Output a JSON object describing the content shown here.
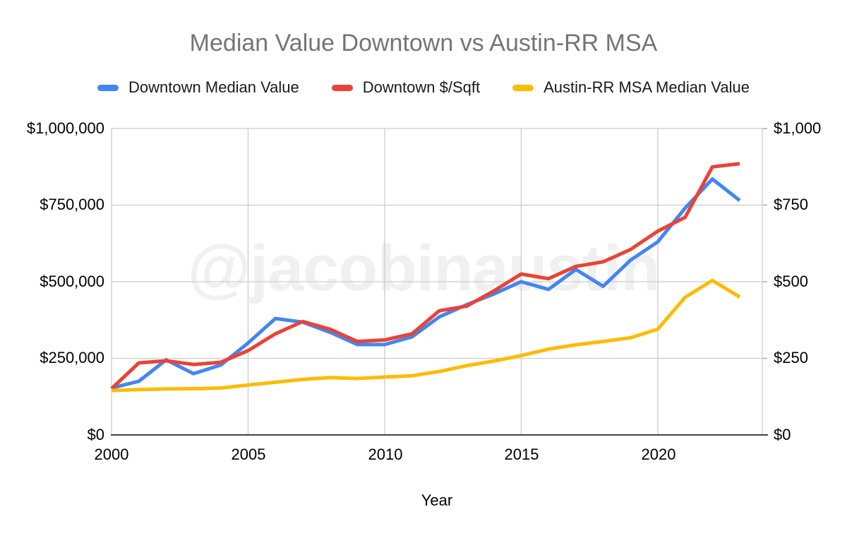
{
  "title": "Median Value Downtown vs Austin-RR MSA",
  "watermark": "@jacobinaustin",
  "legend": [
    {
      "label": "Downtown Median Value",
      "color": "#4285F4"
    },
    {
      "label": "Downtown $/Sqft",
      "color": "#EA4335"
    },
    {
      "label": "Austin-RR MSA Median Value",
      "color": "#FBBC04"
    }
  ],
  "axes": {
    "left_ticks": [
      "$1,000,000",
      "$750,000",
      "$500,000",
      "$250,000",
      "$0"
    ],
    "right_ticks": [
      "$1,000",
      "$750",
      "$500",
      "$250",
      "$0"
    ],
    "x_ticks": [
      "2000",
      "2005",
      "2010",
      "2015",
      "2020"
    ],
    "x_label": "Year"
  },
  "colors": {
    "grid": "#cccccc",
    "axis_line": "#424242",
    "tick_mark": "#9e9e9e",
    "title_text": "#757575",
    "watermark_text": "#f0f0f0"
  },
  "chart_data": {
    "type": "line",
    "title": "Median Value Downtown vs Austin-RR MSA",
    "xlabel": "Year",
    "grid": true,
    "legend_position": "top",
    "x": [
      2000,
      2001,
      2002,
      2003,
      2004,
      2005,
      2006,
      2007,
      2008,
      2009,
      2010,
      2011,
      2012,
      2013,
      2014,
      2015,
      2016,
      2017,
      2018,
      2019,
      2020,
      2021,
      2022,
      2023
    ],
    "x_gridline_years": [
      2000,
      2005,
      2010,
      2015,
      2020
    ],
    "left_axis": {
      "label_format": "USD",
      "min": 0,
      "max": 1000000,
      "ticks": [
        0,
        250000,
        500000,
        750000,
        1000000
      ]
    },
    "right_axis": {
      "label_format": "USD per sqft",
      "min": 0,
      "max": 1000,
      "ticks": [
        0,
        250,
        500,
        750,
        1000
      ]
    },
    "series": [
      {
        "name": "Downtown Median Value",
        "axis": "left",
        "color": "#4285F4",
        "values": [
          153000,
          175000,
          245000,
          200000,
          228000,
          300000,
          380000,
          368000,
          335000,
          295000,
          295000,
          320000,
          385000,
          425000,
          460000,
          500000,
          475000,
          540000,
          485000,
          570000,
          630000,
          740000,
          835000,
          765000
        ]
      },
      {
        "name": "Downtown $/Sqft",
        "axis": "right",
        "color": "#EA4335",
        "values": [
          151,
          235,
          242,
          230,
          237,
          275,
          330,
          370,
          345,
          305,
          310,
          330,
          405,
          420,
          470,
          525,
          510,
          550,
          565,
          605,
          665,
          710,
          875,
          885
        ]
      },
      {
        "name": "Austin-RR MSA Median Value",
        "axis": "left",
        "color": "#FBBC04",
        "values": [
          145000,
          148000,
          150000,
          151000,
          153000,
          163000,
          172000,
          181000,
          187000,
          184000,
          189000,
          193000,
          207000,
          226000,
          241000,
          259000,
          280000,
          294000,
          305000,
          317000,
          345000,
          449000,
          504000,
          450000
        ]
      }
    ]
  }
}
